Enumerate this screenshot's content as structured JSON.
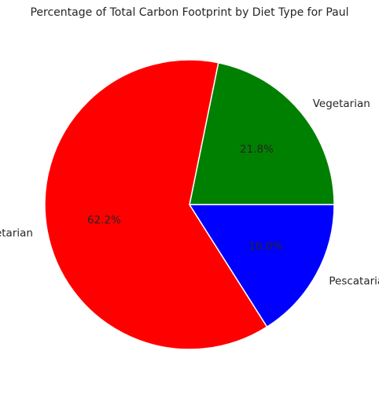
{
  "chart_data": {
    "type": "pie",
    "title": "Percentage of Total Carbon Footprint by Diet Type for Paul",
    "slices": [
      {
        "label": "Vegetarian",
        "value": 21.8,
        "pct_label": "21.8%",
        "color": "#008000"
      },
      {
        "label": "Non-Vegetarian",
        "value": 62.2,
        "pct_label": "62.2%",
        "color": "#ff0000"
      },
      {
        "label": "Pescatarian",
        "value": 16.0,
        "pct_label": "16.0%",
        "color": "#0000ff"
      }
    ],
    "start_angle_deg": 0,
    "direction": "counterclockwise",
    "edge_color": "#ffffff",
    "legend": "none"
  }
}
